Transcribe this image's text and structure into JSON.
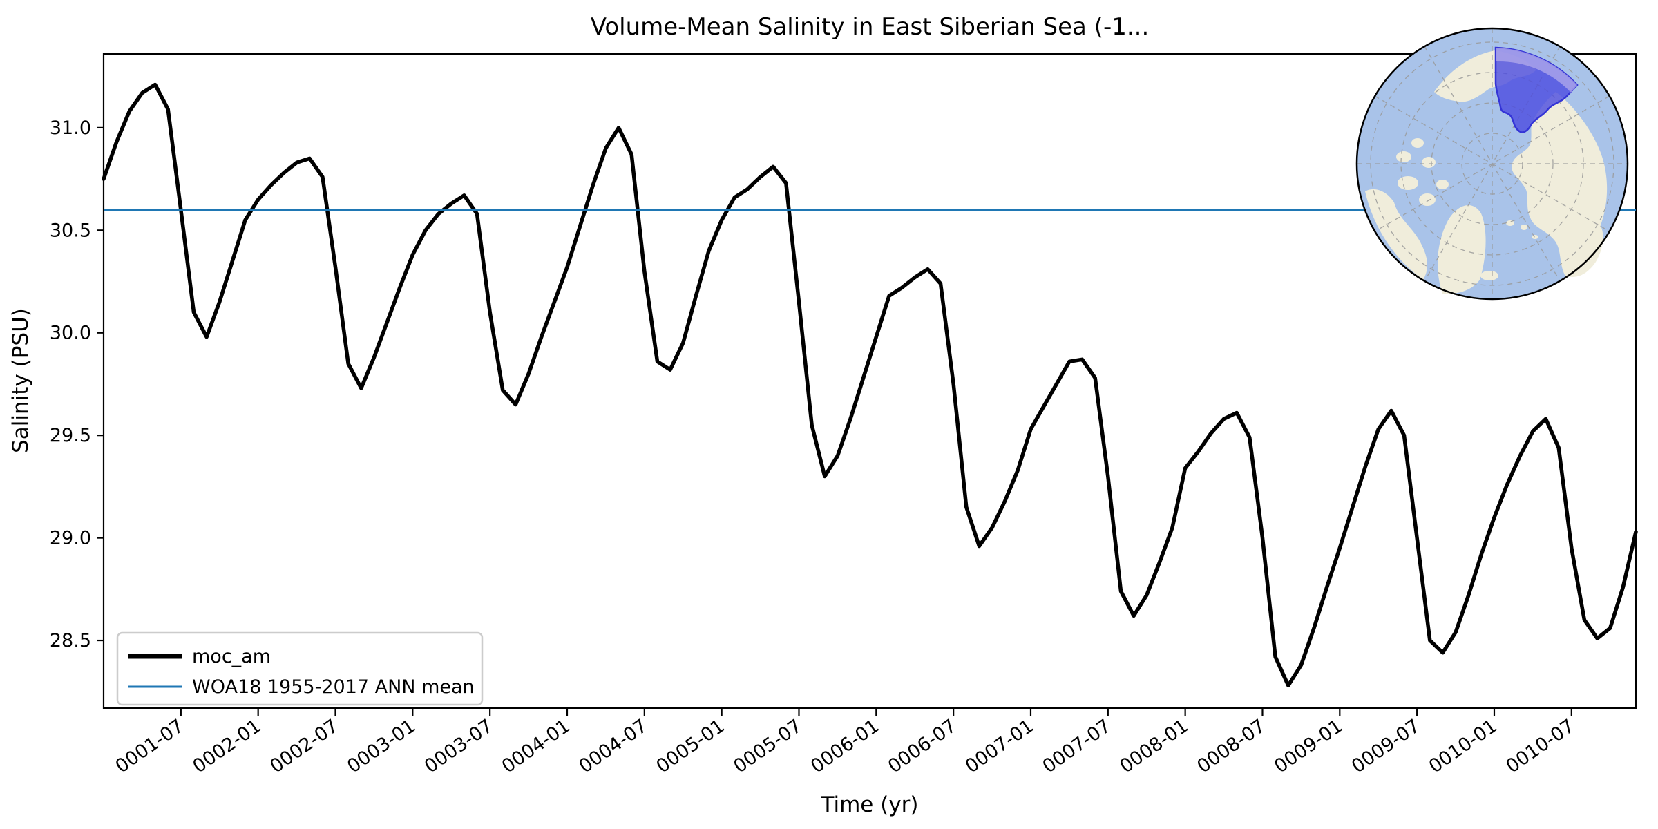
{
  "chart_data": {
    "type": "line",
    "title": "Volume-Mean Salinity in East Siberian Sea (-1...",
    "xlabel": "Time (yr)",
    "ylabel": "Salinity (PSU)",
    "x_start": "0001-01",
    "x_end": "0010-12",
    "points_per_year": 12,
    "n_points": 120,
    "x_tick_labels": [
      "0001-07",
      "0002-01",
      "0002-07",
      "0003-01",
      "0003-07",
      "0004-01",
      "0004-07",
      "0005-01",
      "0005-07",
      "0006-01",
      "0006-07",
      "0007-01",
      "0007-07",
      "0008-01",
      "0008-07",
      "0009-01",
      "0009-07",
      "0010-01",
      "0010-07"
    ],
    "x_tick_month_step": 6,
    "x_tick_first_month_index": 6,
    "y_ticks": [
      28.5,
      29.0,
      29.5,
      30.0,
      30.5,
      31.0
    ],
    "y_tick_labels": [
      "28.5",
      "29.0",
      "29.5",
      "30.0",
      "30.5",
      "31.0"
    ],
    "ylim": [
      28.17,
      31.36
    ],
    "grid": false,
    "legend_position": "lower left",
    "series": [
      {
        "name": "moc_am",
        "kind": "monthly-line",
        "color": "#000000",
        "linewidth": 5.5,
        "values": [
          30.75,
          30.93,
          31.08,
          31.17,
          31.21,
          31.09,
          30.6,
          30.1,
          29.98,
          30.15,
          30.35,
          30.55,
          30.65,
          30.72,
          30.78,
          30.83,
          30.85,
          30.76,
          30.32,
          29.85,
          29.73,
          29.88,
          30.05,
          30.22,
          30.38,
          30.5,
          30.58,
          30.63,
          30.67,
          30.58,
          30.1,
          29.72,
          29.65,
          29.8,
          29.98,
          30.15,
          30.32,
          30.52,
          30.72,
          30.9,
          31.0,
          30.87,
          30.3,
          29.86,
          29.82,
          29.95,
          30.18,
          30.4,
          30.55,
          30.66,
          30.7,
          30.76,
          30.81,
          30.73,
          30.15,
          29.55,
          29.3,
          29.4,
          29.58,
          29.78,
          29.98,
          30.18,
          30.22,
          30.27,
          30.31,
          30.24,
          29.75,
          29.15,
          28.96,
          29.05,
          29.18,
          29.33,
          29.53,
          29.64,
          29.75,
          29.86,
          29.87,
          29.78,
          29.3,
          28.74,
          28.62,
          28.72,
          28.88,
          29.05,
          29.34,
          29.42,
          29.51,
          29.58,
          29.61,
          29.49,
          29.0,
          28.42,
          28.28,
          28.38,
          28.56,
          28.76,
          28.95,
          29.15,
          29.35,
          29.53,
          29.62,
          29.5,
          29.0,
          28.5,
          28.44,
          28.54,
          28.72,
          28.92,
          29.1,
          29.26,
          29.4,
          29.52,
          29.58,
          29.44,
          28.95,
          28.6,
          28.51,
          28.56,
          28.76,
          29.03
        ]
      },
      {
        "name": "WOA18 1955-2017 ANN mean",
        "kind": "hline",
        "color": "#1f77b4",
        "linewidth": 3,
        "value": 30.6
      }
    ],
    "inset_map": {
      "description": "North polar inset map with East Siberian Sea sector highlighted",
      "ocean_color": "#a9c3e9",
      "land_color": "#f0eddb",
      "highlight_fill": "#4b4be0",
      "highlight_land_fill": "#b3abeb",
      "highlight_stroke": "#3434d6",
      "graticule_color": "#999999",
      "border_color": "#000000"
    }
  }
}
